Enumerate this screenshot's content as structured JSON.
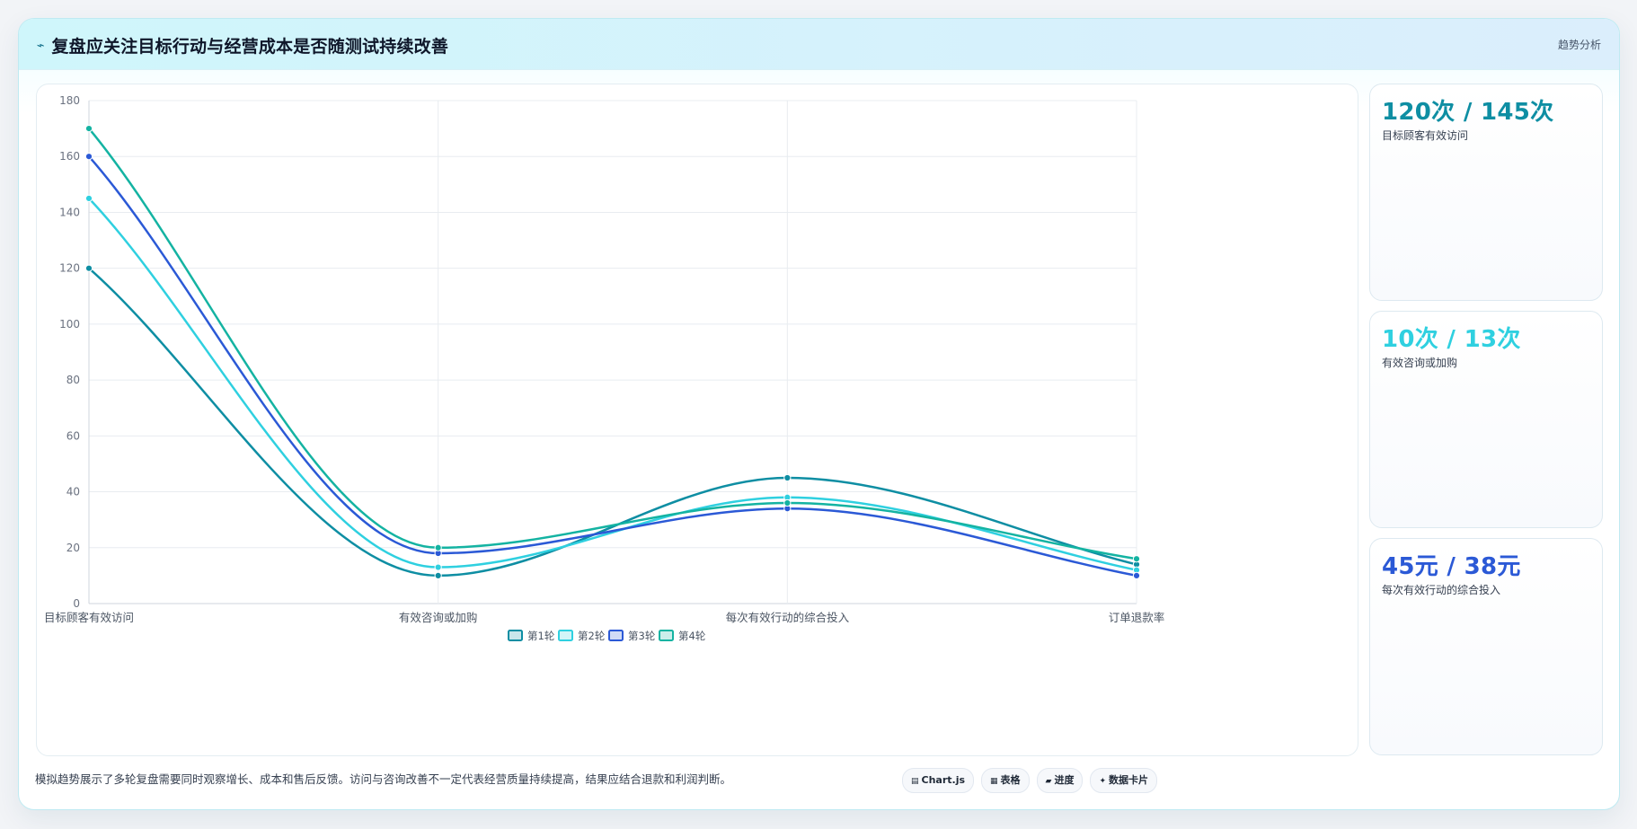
{
  "header": {
    "icon": "sparkline-icon",
    "title": "复盘应关注目标行动与经营成本是否随测试持续改善",
    "tag": "趋势分析"
  },
  "chart_data": {
    "type": "line",
    "categories": [
      "目标顾客有效访问",
      "有效咨询或加购",
      "每次有效行动的综合投入",
      "订单退款率"
    ],
    "ylim": [
      0,
      180
    ],
    "yticks": [
      0,
      20,
      40,
      60,
      80,
      100,
      120,
      140,
      160,
      180
    ],
    "grid": true,
    "legend_position": "bottom-center",
    "series": [
      {
        "name": "第1轮",
        "color": "#0e8ea3",
        "values": [
          120,
          10,
          45,
          14
        ]
      },
      {
        "name": "第2轮",
        "color": "#2fd0e0",
        "values": [
          145,
          13,
          38,
          12
        ]
      },
      {
        "name": "第3轮",
        "color": "#2b59d6",
        "values": [
          160,
          18,
          34,
          10
        ]
      },
      {
        "name": "第4轮",
        "color": "#14b3a2",
        "values": [
          170,
          20,
          36,
          16
        ]
      }
    ]
  },
  "kpis": [
    {
      "value": "120次 / 145次",
      "label": "目标顾客有效访问",
      "color": "#0e8ea3"
    },
    {
      "value": "10次 / 13次",
      "label": "有效咨询或加购",
      "color": "#2fd0e0"
    },
    {
      "value": "45元 / 38元",
      "label": "每次有效行动的综合投入",
      "color": "#2b59d6"
    }
  ],
  "footer": {
    "note": "模拟趋势展示了多轮复盘需要同时观察增长、成本和售后反馈。访问与咨询改善不一定代表经营质量持续提高，结果应结合退款和利润判断。",
    "pills": [
      {
        "icon": "chart-icon",
        "glyph": "▤",
        "label": "Chart.js"
      },
      {
        "icon": "table-icon",
        "glyph": "▦",
        "label": "表格"
      },
      {
        "icon": "progress-icon",
        "glyph": "▰",
        "label": "进度"
      },
      {
        "icon": "card-icon",
        "glyph": "✦",
        "label": "数据卡片"
      }
    ]
  }
}
